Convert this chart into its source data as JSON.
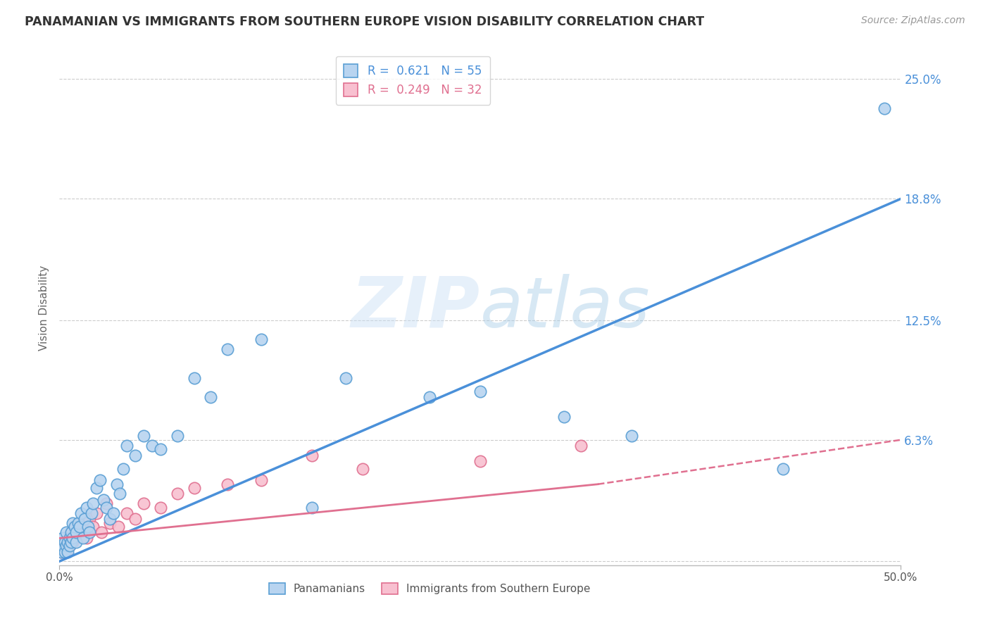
{
  "title": "PANAMANIAN VS IMMIGRANTS FROM SOUTHERN EUROPE VISION DISABILITY CORRELATION CHART",
  "source": "Source: ZipAtlas.com",
  "ylabel": "Vision Disability",
  "y_ticks": [
    0.0,
    0.063,
    0.125,
    0.188,
    0.25
  ],
  "y_tick_labels": [
    "",
    "6.3%",
    "12.5%",
    "18.8%",
    "25.0%"
  ],
  "x_range": [
    0.0,
    0.5
  ],
  "y_range": [
    -0.002,
    0.265
  ],
  "series1_color": "#b8d4f0",
  "series1_edge": "#5a9fd4",
  "series2_color": "#f8c0d0",
  "series2_edge": "#e07090",
  "line1_color": "#4a90d9",
  "line2_color": "#e07090",
  "watermark_zip": "ZIP",
  "watermark_atlas": "atlas",
  "pan_x": [
    0.001,
    0.002,
    0.002,
    0.003,
    0.003,
    0.004,
    0.004,
    0.005,
    0.005,
    0.006,
    0.006,
    0.007,
    0.007,
    0.008,
    0.008,
    0.009,
    0.01,
    0.01,
    0.011,
    0.012,
    0.013,
    0.014,
    0.015,
    0.016,
    0.017,
    0.018,
    0.019,
    0.02,
    0.022,
    0.024,
    0.026,
    0.028,
    0.03,
    0.032,
    0.034,
    0.036,
    0.038,
    0.04,
    0.045,
    0.05,
    0.055,
    0.06,
    0.07,
    0.08,
    0.09,
    0.1,
    0.12,
    0.15,
    0.17,
    0.22,
    0.25,
    0.3,
    0.34,
    0.43,
    0.49
  ],
  "pan_y": [
    0.005,
    0.008,
    0.012,
    0.005,
    0.01,
    0.008,
    0.015,
    0.01,
    0.005,
    0.012,
    0.008,
    0.015,
    0.01,
    0.02,
    0.012,
    0.018,
    0.01,
    0.015,
    0.02,
    0.018,
    0.025,
    0.012,
    0.022,
    0.028,
    0.018,
    0.015,
    0.025,
    0.03,
    0.038,
    0.042,
    0.032,
    0.028,
    0.022,
    0.025,
    0.04,
    0.035,
    0.048,
    0.06,
    0.055,
    0.065,
    0.06,
    0.058,
    0.065,
    0.095,
    0.085,
    0.11,
    0.115,
    0.028,
    0.095,
    0.085,
    0.088,
    0.075,
    0.065,
    0.048,
    0.235
  ],
  "se_x": [
    0.001,
    0.002,
    0.003,
    0.004,
    0.005,
    0.006,
    0.007,
    0.008,
    0.009,
    0.01,
    0.012,
    0.014,
    0.016,
    0.018,
    0.02,
    0.022,
    0.025,
    0.028,
    0.03,
    0.035,
    0.04,
    0.045,
    0.05,
    0.06,
    0.07,
    0.08,
    0.1,
    0.12,
    0.15,
    0.18,
    0.25,
    0.31
  ],
  "se_y": [
    0.005,
    0.008,
    0.01,
    0.005,
    0.012,
    0.008,
    0.015,
    0.01,
    0.012,
    0.018,
    0.015,
    0.02,
    0.012,
    0.022,
    0.018,
    0.025,
    0.015,
    0.03,
    0.02,
    0.018,
    0.025,
    0.022,
    0.03,
    0.028,
    0.035,
    0.038,
    0.04,
    0.042,
    0.055,
    0.048,
    0.052,
    0.06
  ],
  "line1_x0": 0.0,
  "line1_y0": 0.0,
  "line1_x1": 0.5,
  "line1_y1": 0.188,
  "line2_x0": 0.0,
  "line2_y0": 0.012,
  "line2_solid_x1": 0.32,
  "line2_solid_y1": 0.04,
  "line2_dash_x1": 0.5,
  "line2_dash_y1": 0.063
}
